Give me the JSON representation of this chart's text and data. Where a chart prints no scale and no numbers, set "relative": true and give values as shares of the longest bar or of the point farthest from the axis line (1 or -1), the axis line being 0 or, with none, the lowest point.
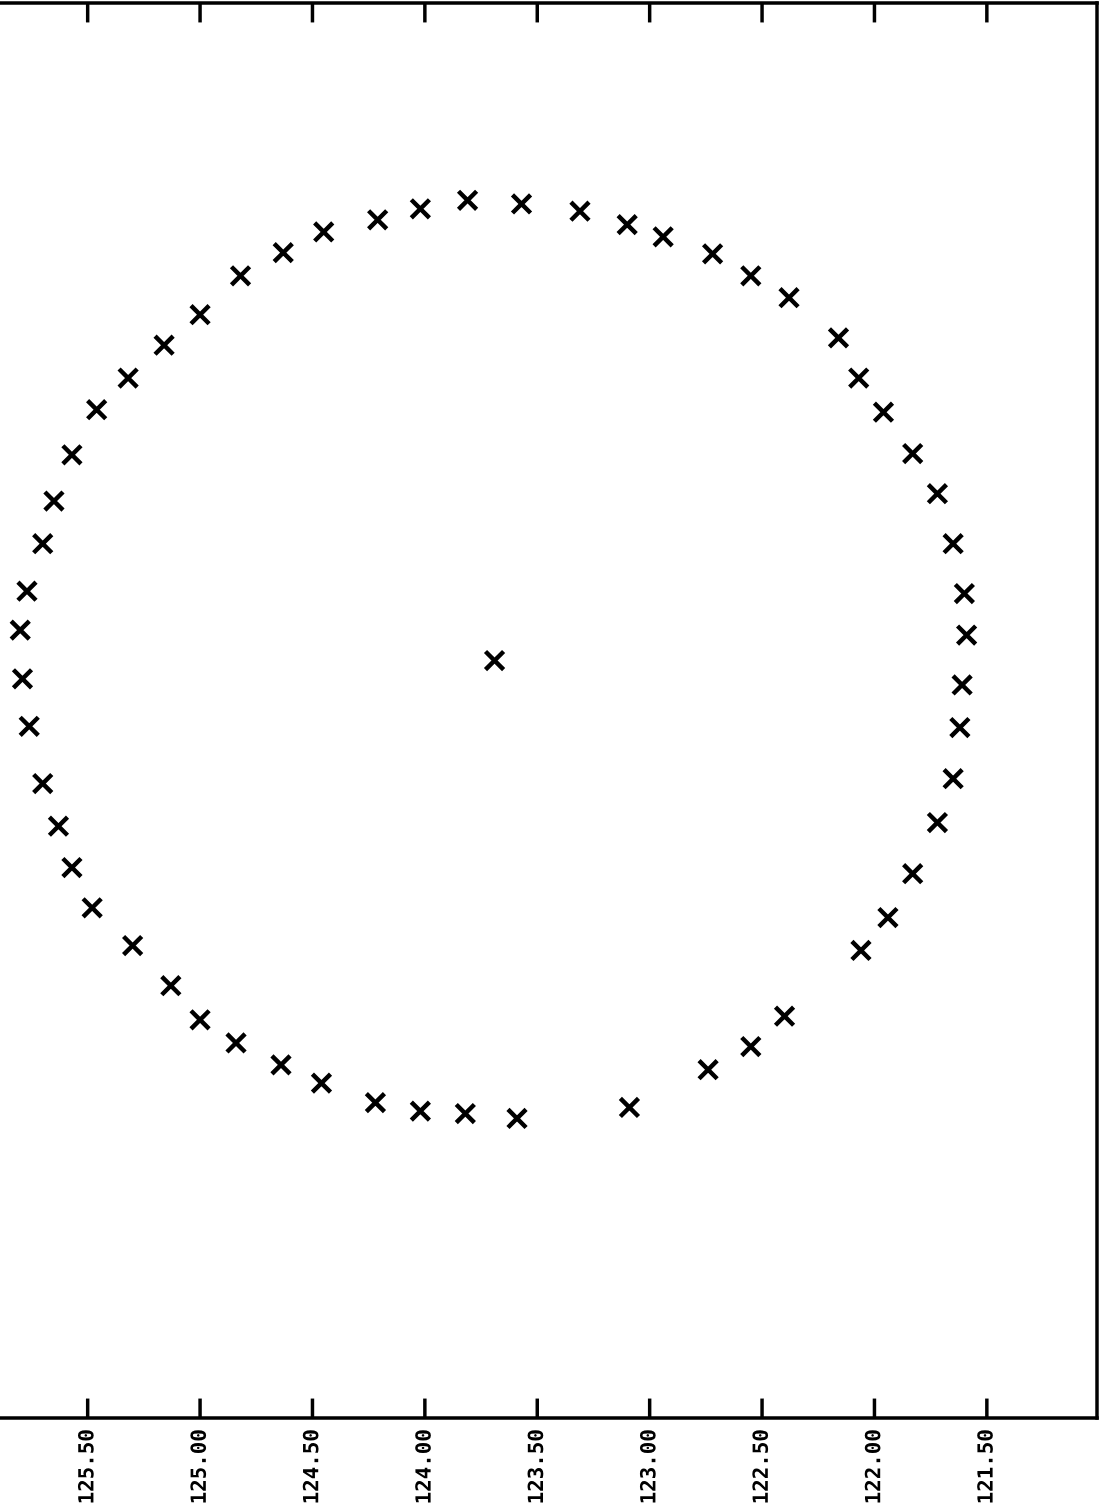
{
  "chart_data": {
    "type": "scatter",
    "relative": true,
    "marker": "cross",
    "grid": false,
    "tick_labels": "x",
    "xlim": [
      125.89,
      121.01
    ],
    "xticks": [
      {
        "value": 125.5,
        "label": "125.50"
      },
      {
        "value": 125.0,
        "label": "125.00"
      },
      {
        "value": 124.5,
        "label": "124.50"
      },
      {
        "value": 124.0,
        "label": "124.00"
      },
      {
        "value": 123.5,
        "label": "123.50"
      },
      {
        "value": 123.0,
        "label": "123.00"
      },
      {
        "value": 122.5,
        "label": "122.50"
      },
      {
        "value": 122.0,
        "label": "122.00"
      },
      {
        "value": 121.5,
        "label": "121.50"
      }
    ],
    "series": [
      {
        "color": "#000000",
        "x": [
          125.8,
          125.77,
          125.7,
          125.65,
          125.57,
          125.46,
          125.32,
          125.16,
          125.0,
          124.82,
          124.63,
          124.45,
          124.21,
          124.02,
          123.81,
          123.57,
          123.31,
          123.1,
          122.94,
          122.72,
          122.55,
          122.38,
          122.16,
          122.07,
          121.96,
          121.83,
          121.72,
          121.65,
          121.6,
          121.59,
          125.79,
          125.76,
          125.7,
          125.63,
          125.57,
          125.48,
          125.3,
          125.13,
          125.0,
          124.84,
          124.64,
          124.46,
          124.22,
          124.02,
          123.82,
          123.59,
          123.09,
          122.74,
          122.55,
          122.4,
          122.06,
          121.94,
          121.83,
          121.72,
          121.65,
          121.62,
          121.61,
          123.69
        ],
        "values": [
          0.647,
          0.679,
          0.718,
          0.753,
          0.791,
          0.828,
          0.854,
          0.881,
          0.906,
          0.938,
          0.957,
          0.974,
          0.984,
          0.993,
          1.0,
          0.997,
          0.991,
          0.98,
          0.97,
          0.956,
          0.938,
          0.92,
          0.887,
          0.854,
          0.826,
          0.792,
          0.759,
          0.718,
          0.677,
          0.643,
          0.607,
          0.568,
          0.521,
          0.486,
          0.452,
          0.419,
          0.388,
          0.355,
          0.327,
          0.308,
          0.29,
          0.275,
          0.259,
          0.252,
          0.25,
          0.246,
          0.255,
          0.286,
          0.305,
          0.33,
          0.384,
          0.411,
          0.447,
          0.489,
          0.525,
          0.567,
          0.602,
          0.622
        ]
      }
    ]
  }
}
